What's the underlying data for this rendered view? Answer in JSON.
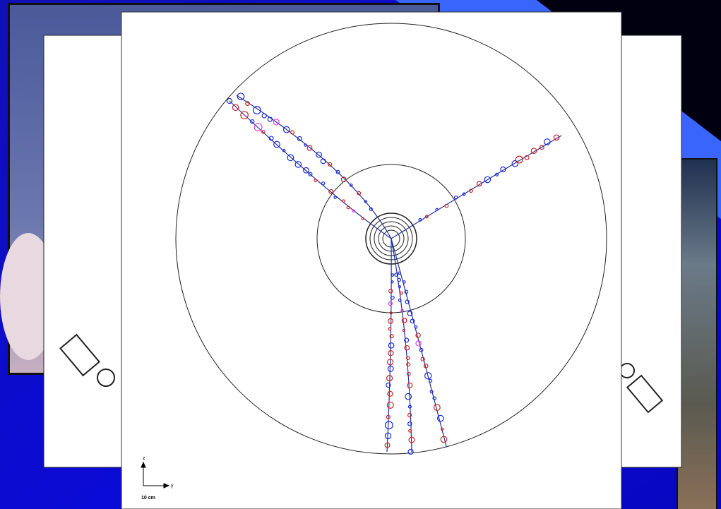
{
  "figure": {
    "scale_label": "10 cm",
    "vertical_axis": "z",
    "horizontal_axis": "y"
  }
}
